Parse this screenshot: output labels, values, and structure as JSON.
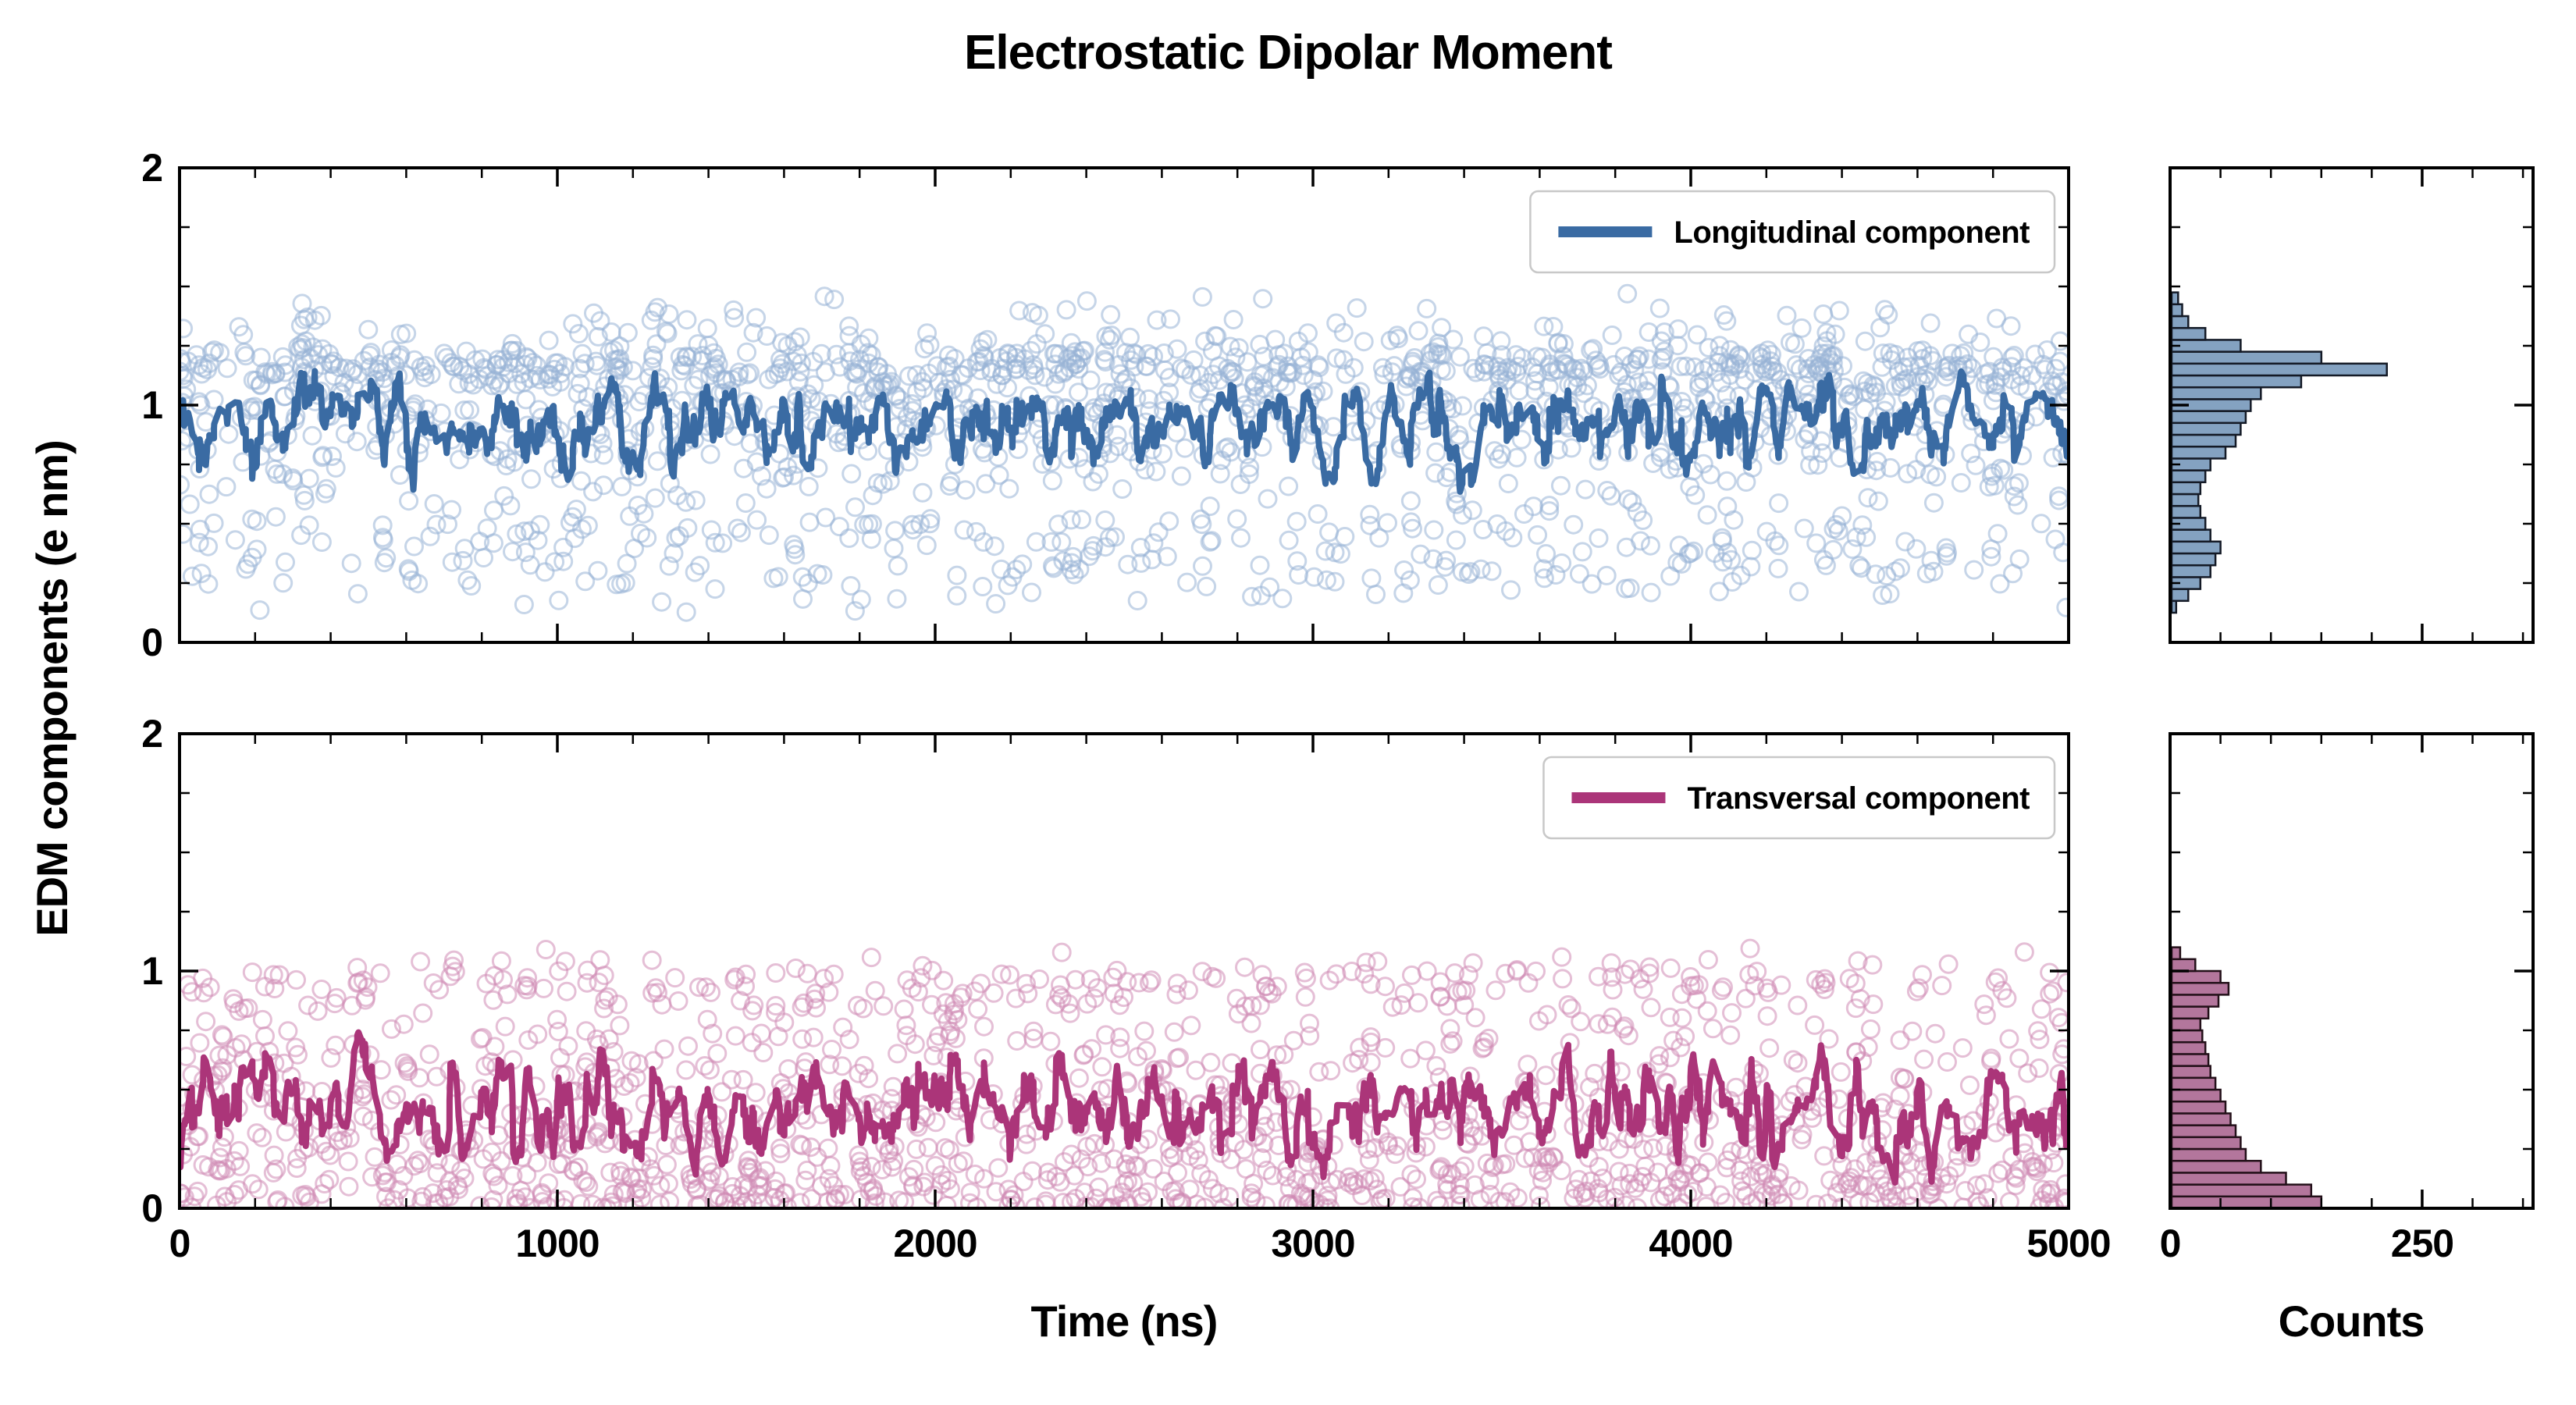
{
  "chart_data": {
    "type": "scatter",
    "title": "Electrostatic Dipolar Moment",
    "xlabel": "Time (ns)",
    "ylabel": "EDM components (e nm)",
    "counts_label": "Counts",
    "x_range": [
      0,
      5000
    ],
    "y_range": [
      0,
      2
    ],
    "x_ticks": [
      0,
      1000,
      2000,
      3000,
      4000,
      5000
    ],
    "x_minor_step": 200,
    "y_ticks": [
      0,
      1,
      2
    ],
    "y_minor_step": 0.25,
    "counts_range": [
      0,
      360
    ],
    "counts_ticks": [
      0,
      250
    ],
    "counts_minor_step": 50,
    "legend_position": "upper right",
    "grid": false,
    "panels": [
      {
        "id": "longitudinal",
        "legend_label": "Longitudinal component",
        "line_color": "#3a6ba3",
        "scatter_color": "#97b3d6",
        "hist_fill": "#84a2c1",
        "hist_edge": "#141a26",
        "n_scatter_points": 1700,
        "seed": 20240,
        "moving_avg_window": 11,
        "hist_bin_width": 0.05,
        "mean_level": 0.91,
        "histogram": {
          "bin_centers": [
            0.15,
            0.2,
            0.25,
            0.3,
            0.35,
            0.4,
            0.45,
            0.5,
            0.55,
            0.6,
            0.65,
            0.7,
            0.75,
            0.8,
            0.85,
            0.9,
            0.95,
            1.0,
            1.05,
            1.1,
            1.15,
            1.2,
            1.25,
            1.3,
            1.35,
            1.4,
            1.45
          ],
          "counts": [
            6,
            18,
            30,
            40,
            45,
            50,
            40,
            35,
            30,
            28,
            30,
            35,
            40,
            55,
            65,
            70,
            75,
            80,
            90,
            130,
            215,
            150,
            70,
            35,
            18,
            12,
            8
          ]
        }
      },
      {
        "id": "transversal",
        "legend_label": "Transversal component",
        "line_color": "#ab3579",
        "scatter_color": "#cf8ab4",
        "hist_fill": "#b3769c",
        "hist_edge": "#231019",
        "n_scatter_points": 1500,
        "seed": 77531,
        "moving_avg_window": 9,
        "hist_bin_width": 0.05,
        "mean_level": 0.4,
        "histogram": {
          "bin_centers": [
            0.025,
            0.075,
            0.125,
            0.175,
            0.225,
            0.275,
            0.325,
            0.375,
            0.425,
            0.475,
            0.525,
            0.575,
            0.625,
            0.675,
            0.725,
            0.775,
            0.825,
            0.875,
            0.925,
            0.975,
            1.025,
            1.075
          ],
          "counts": [
            150,
            140,
            115,
            90,
            75,
            70,
            65,
            60,
            55,
            50,
            45,
            40,
            38,
            35,
            32,
            30,
            38,
            48,
            58,
            50,
            25,
            10
          ]
        }
      }
    ]
  }
}
